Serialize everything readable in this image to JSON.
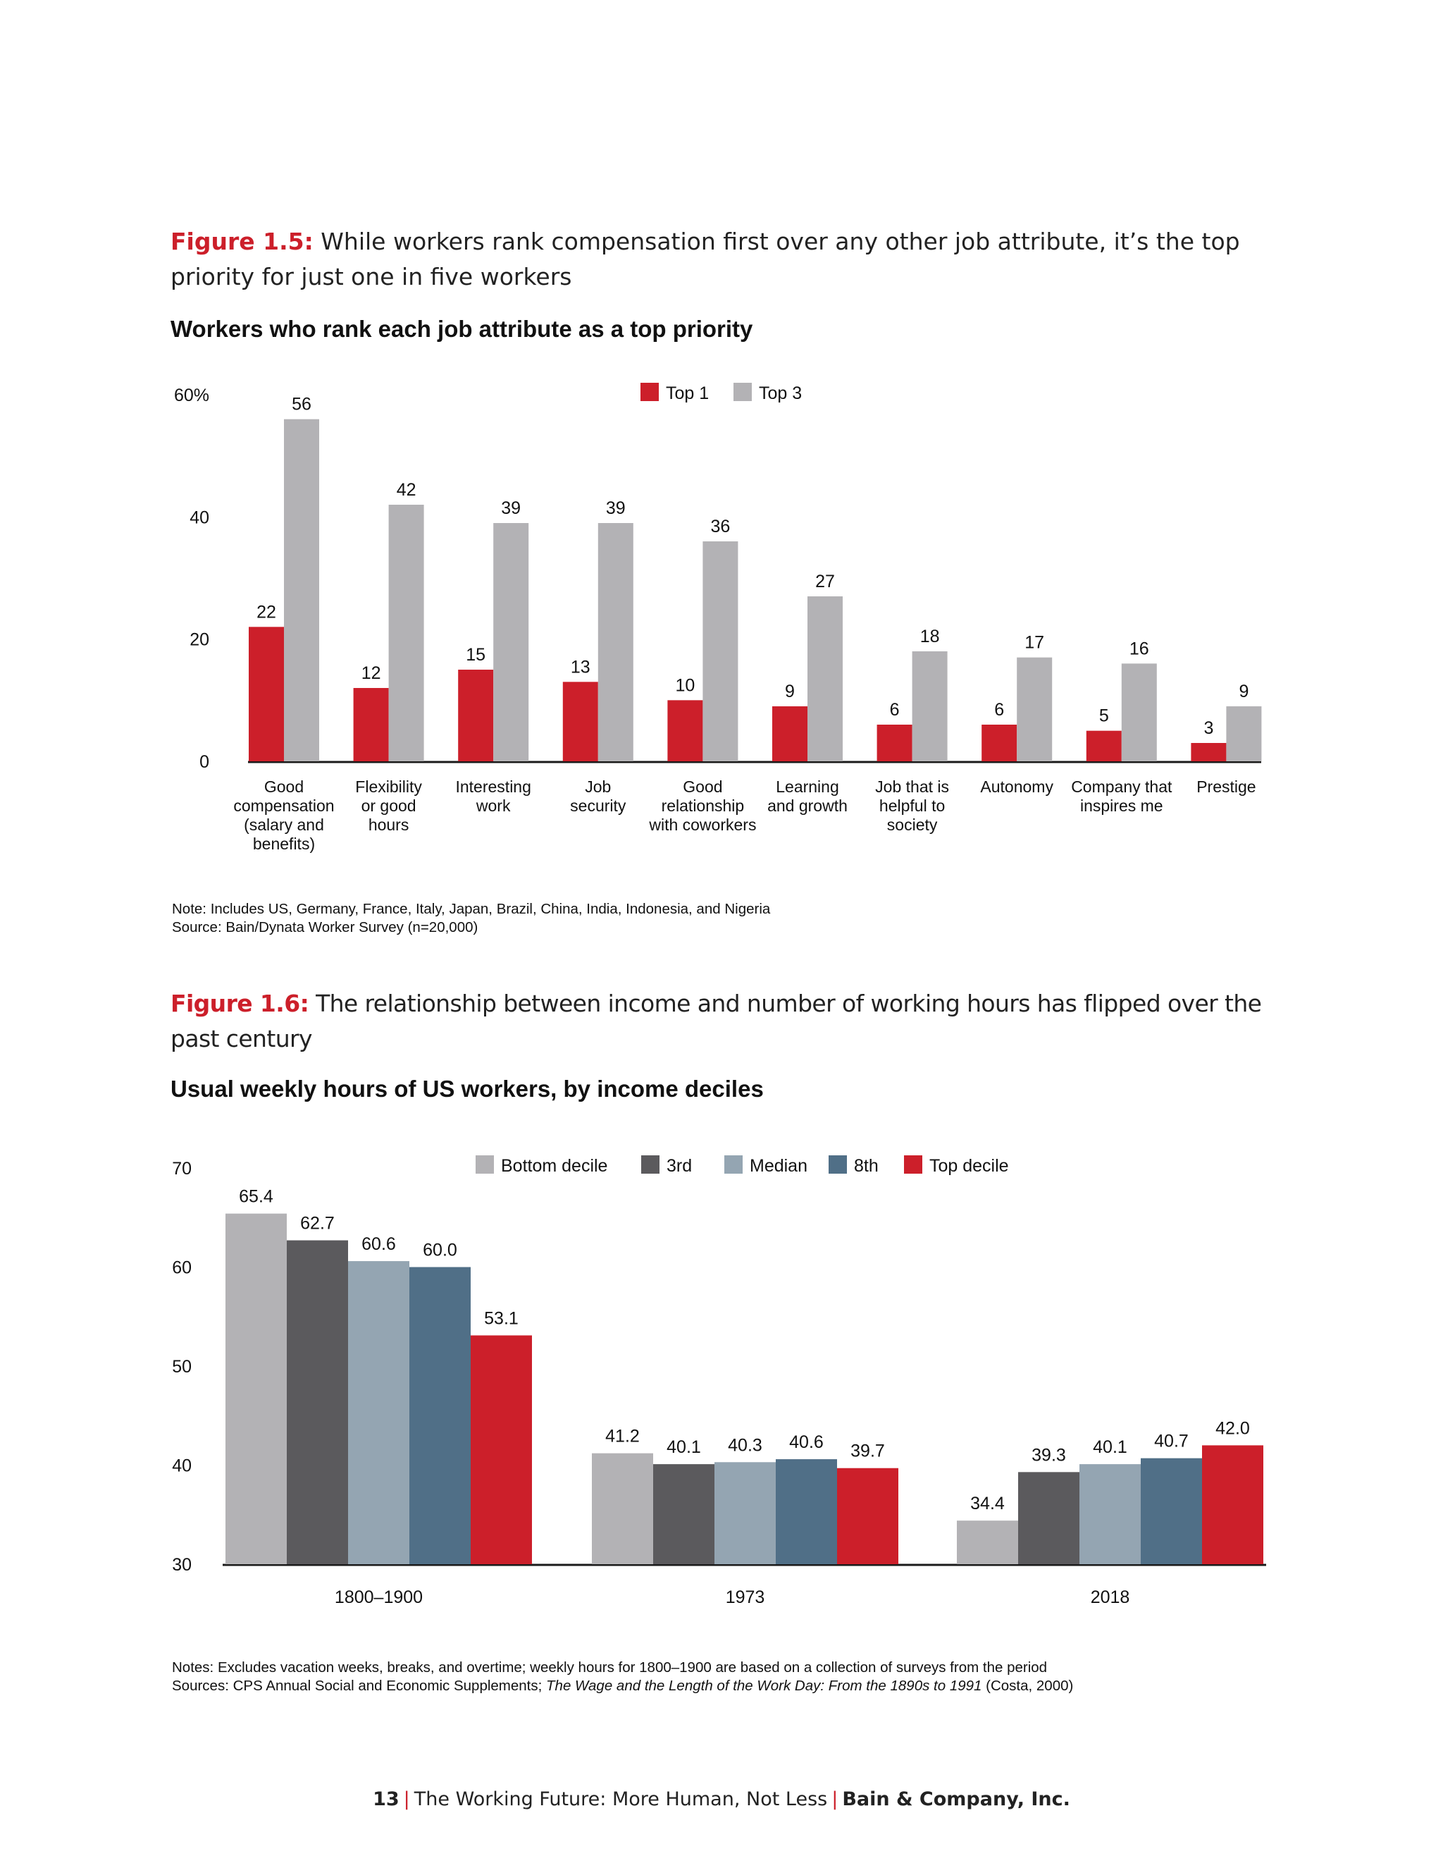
{
  "figure15": {
    "label": "Figure 1.5:",
    "caption": "While workers rank compensation first over any other job attribute, it’s the top priority for just one in five workers",
    "note": "Note: Includes US, Germany, France, Italy, Japan, Brazil, China, India, Indonesia, and Nigeria",
    "source": "Source: Bain/Dynata Worker Survey (n=20,000)"
  },
  "figure16": {
    "label": "Figure 1.6:",
    "caption": "The relationship between income and number of working hours has flipped over the past century",
    "notes": "Notes: Excludes vacation weeks, breaks, and overtime; weekly hours for 1800–1900 are based on a collection of surveys from the period",
    "sources_prefix": "Sources: CPS Annual Social and Economic Supplements; ",
    "sources_title": "The Wage and the Length of the Work Day: From the 1890s to 1991",
    "sources_suffix": " (Costa, 2000)"
  },
  "footer": {
    "page": "13",
    "title": "The Working Future: More Human, Not Less",
    "company": "Bain & Company, Inc."
  },
  "chart_data": [
    {
      "type": "bar",
      "title": "Workers who rank each job attribute as a top priority",
      "ylim": [
        0,
        60
      ],
      "yticks": [
        "0",
        "20",
        "40",
        "60%"
      ],
      "categories": [
        [
          "Good",
          "compensation",
          "(salary and",
          "benefits)"
        ],
        [
          "Flexibility",
          "or good",
          "hours"
        ],
        [
          "Interesting",
          "work"
        ],
        [
          "Job",
          "security"
        ],
        [
          "Good",
          "relationship",
          "with coworkers"
        ],
        [
          "Learning",
          "and growth"
        ],
        [
          "Job that is",
          "helpful to",
          "society"
        ],
        [
          "Autonomy"
        ],
        [
          "Company that",
          "inspires me"
        ],
        [
          "Prestige"
        ]
      ],
      "series": [
        {
          "name": "Top 1",
          "color": "#cc1f2a",
          "values": [
            22,
            12,
            15,
            13,
            10,
            9,
            6,
            6,
            5,
            3
          ]
        },
        {
          "name": "Top 3",
          "color": "#b3b2b5",
          "values": [
            56,
            42,
            39,
            39,
            36,
            27,
            18,
            17,
            16,
            9
          ]
        }
      ],
      "legend": "top-center",
      "grid": false
    },
    {
      "type": "bar",
      "title": "Usual weekly hours of US workers, by income deciles",
      "ylim": [
        30,
        70
      ],
      "yticks": [
        "30",
        "40",
        "50",
        "60",
        "70"
      ],
      "categories": [
        "1800–1900",
        "1973",
        "2018"
      ],
      "series": [
        {
          "name": "Bottom decile",
          "color": "#b3b2b5",
          "values": [
            "65.4",
            "41.2",
            "34.4"
          ]
        },
        {
          "name": "3rd",
          "color": "#5b5a5d",
          "values": [
            "62.7",
            "40.1",
            "39.3"
          ]
        },
        {
          "name": "Median",
          "color": "#94a5b2",
          "values": [
            "60.6",
            "40.3",
            "40.1"
          ]
        },
        {
          "name": "8th",
          "color": "#506f87",
          "values": [
            "60.0",
            "40.6",
            "40.7"
          ]
        },
        {
          "name": "Top decile",
          "color": "#cc1f2a",
          "values": [
            "53.1",
            "39.7",
            "42.0"
          ]
        }
      ],
      "legend": "top-center",
      "grid": false
    }
  ]
}
